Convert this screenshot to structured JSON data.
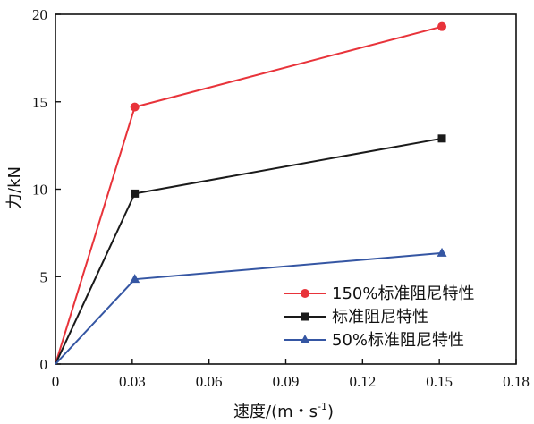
{
  "chart_data": {
    "type": "line",
    "xlabel": "速度/(m・s",
    "xlabel_sup": "-1",
    "xlabel_end": ")",
    "ylabel": "力/kN",
    "xlim": [
      0,
      0.18
    ],
    "ylim": [
      0,
      20
    ],
    "x_ticks": [
      "0",
      "0.03",
      "0.06",
      "0.09",
      "0.12",
      "0.15",
      "0.18"
    ],
    "y_ticks": [
      "0",
      "5",
      "10",
      "15",
      "20"
    ],
    "grid": false,
    "legend_position": "bottom-right",
    "series": [
      {
        "name": "150%标准阻尼特性",
        "color": "#e8333a",
        "marker": "circle",
        "x": [
          0,
          0.031,
          0.151
        ],
        "y": [
          0,
          14.7,
          19.3
        ]
      },
      {
        "name": "标准阻尼特性",
        "color": "#1a1a1a",
        "marker": "square",
        "x": [
          0,
          0.031,
          0.151
        ],
        "y": [
          0,
          9.75,
          12.9
        ]
      },
      {
        "name": "50%标准阻尼特性",
        "color": "#3556a3",
        "marker": "triangle",
        "x": [
          0,
          0.031,
          0.151
        ],
        "y": [
          0,
          4.85,
          6.35
        ]
      }
    ]
  }
}
